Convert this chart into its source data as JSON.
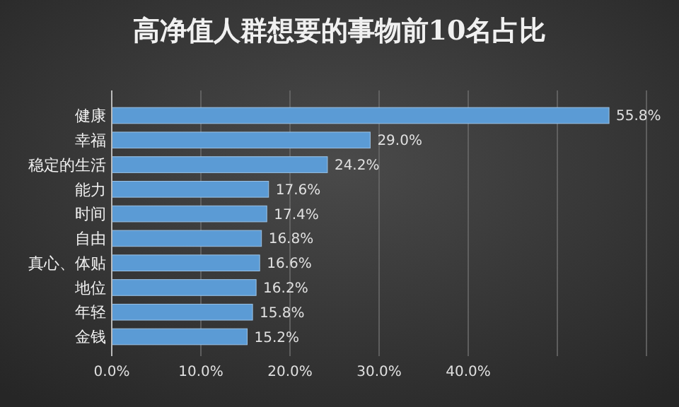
{
  "chart_data": {
    "type": "bar",
    "orientation": "horizontal",
    "title": "高净值人群想要的事物前10名占比",
    "categories": [
      "健康",
      "幸福",
      "稳定的生活",
      "能力",
      "时间",
      "自由",
      "真心、体贴",
      "地位",
      "年轻",
      "金钱"
    ],
    "values": [
      55.8,
      29.0,
      24.2,
      17.6,
      17.4,
      16.8,
      16.6,
      16.2,
      15.8,
      15.2
    ],
    "value_labels": [
      "55.8%",
      "29.0%",
      "24.2%",
      "17.6%",
      "17.4%",
      "16.8%",
      "16.6%",
      "16.2%",
      "15.8%",
      "15.2%"
    ],
    "color": "#5b9bd5",
    "xlim": [
      0,
      60
    ],
    "xticks": [
      {
        "value": 0,
        "label": "0.0%"
      },
      {
        "value": 10,
        "label": "10.0%"
      },
      {
        "value": 20,
        "label": "20.0%"
      },
      {
        "value": 30,
        "label": "30.0%"
      },
      {
        "value": 40,
        "label": "40.0%"
      },
      {
        "value": 50,
        "label": null
      },
      {
        "value": 60,
        "label": null
      }
    ],
    "grid": "x"
  }
}
